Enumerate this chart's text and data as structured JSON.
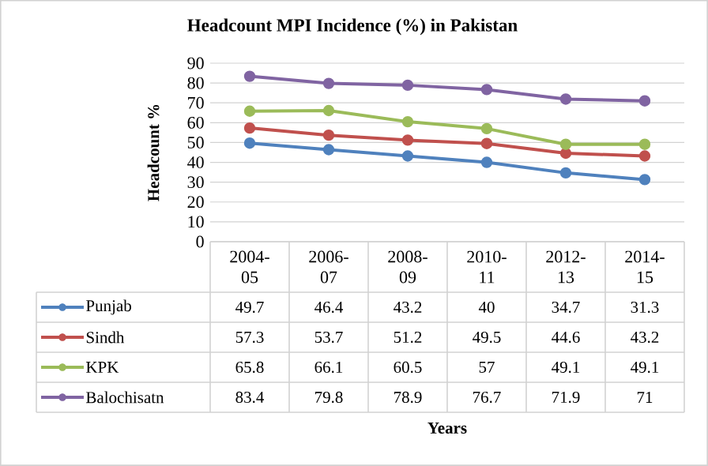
{
  "chart_data": {
    "type": "line",
    "title": "Headcount MPI Incidence (%) in Pakistan",
    "annotations": [
      "Years"
    ],
    "ylabel": "Headcount %",
    "categories": [
      "2004-05",
      "2006-07",
      "2008-09",
      "2010-11",
      "2012-13",
      "2014-15"
    ],
    "series": [
      {
        "name": "Punjab",
        "color": "#4f81bd",
        "values": [
          49.7,
          46.4,
          43.2,
          40,
          34.7,
          31.3
        ]
      },
      {
        "name": "Sindh",
        "color": "#c0504d",
        "values": [
          57.3,
          53.7,
          51.2,
          49.5,
          44.6,
          43.2
        ]
      },
      {
        "name": "KPK",
        "color": "#9bbb59",
        "values": [
          65.8,
          66.1,
          60.5,
          57,
          49.1,
          49.1
        ]
      },
      {
        "name": "Balochisatn",
        "color": "#8064a2",
        "values": [
          83.4,
          79.8,
          78.9,
          76.7,
          71.9,
          71
        ]
      }
    ],
    "ylim": [
      0,
      90
    ],
    "yticks": [
      0,
      10,
      20,
      30,
      40,
      50,
      60,
      70,
      80,
      90
    ],
    "grid": "y",
    "legend": "bottom",
    "marker": "circle",
    "data_labels": true
  }
}
